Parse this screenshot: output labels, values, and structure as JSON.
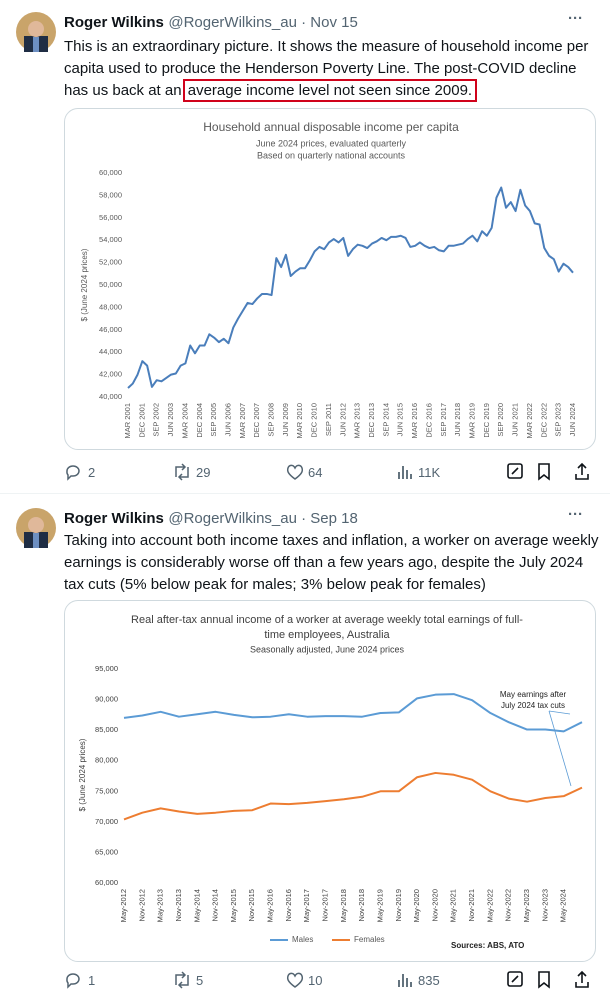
{
  "tweets": [
    {
      "name": "Roger Wilkins",
      "handle": "@RogerWilkins_au",
      "date": "Nov 15",
      "text": "This is an extraordinary picture. It shows the measure of household income per capita used to produce the Henderson Poverty Line. The post-COVID decline has us back at an ",
      "highlight": "average income level not seen since 2009.",
      "replies": "2",
      "reposts": "29",
      "likes": "64",
      "views": "11K"
    },
    {
      "name": "Roger Wilkins",
      "handle": "@RogerWilkins_au",
      "date": "Sep 18",
      "text": "Taking into account both income taxes and inflation, a worker on average weekly earnings is considerably worse off than a few years ago, despite the July 2024 tax cuts (5% below peak for males; 3% below peak for females)",
      "replies": "1",
      "reposts": "5",
      "likes": "10",
      "views": "835"
    }
  ],
  "chart_data": [
    {
      "type": "line",
      "title": "Household annual disposable income per capita",
      "subtitle": [
        "June 2024 prices, evaluated quarterly",
        "Based on quarterly national accounts"
      ],
      "y_label": "$ (June 2024 prices)",
      "color": "#4a7ebb",
      "grid": false,
      "categories": [
        "MAR 2001",
        null,
        null,
        "DEC 2001",
        null,
        null,
        "SEP 2002",
        null,
        null,
        "JUN 2003",
        null,
        null,
        "MAR 2004",
        null,
        null,
        "DEC 2004",
        null,
        null,
        "SEP 2005",
        null,
        null,
        "JUN 2006",
        null,
        null,
        "MAR 2007",
        null,
        null,
        "DEC 2007",
        null,
        null,
        "SEP 2008",
        null,
        null,
        "JUN 2009",
        null,
        null,
        "MAR 2010",
        null,
        null,
        "DEC 2010",
        null,
        null,
        "SEP 2011",
        null,
        null,
        "JUN 2012",
        null,
        null,
        "MAR 2013",
        null,
        null,
        "DEC 2013",
        null,
        null,
        "SEP 2014",
        null,
        null,
        "JUN 2015",
        null,
        null,
        "MAR 2016",
        null,
        null,
        "DEC 2016",
        null,
        null,
        "SEP 2017",
        null,
        null,
        "JUN 2018",
        null,
        null,
        "MAR 2019",
        null,
        null,
        "DEC 2019",
        null,
        null,
        "SEP 2020",
        null,
        null,
        "JUN 2021",
        null,
        null,
        "MAR 2022",
        null,
        null,
        "DEC 2022",
        null,
        null,
        "SEP 2023",
        null,
        null,
        "JUN 2024"
      ],
      "values": [
        40800,
        41200,
        42000,
        43200,
        42800,
        40900,
        41500,
        41400,
        41700,
        42000,
        42100,
        42800,
        43000,
        44600,
        43900,
        44600,
        44600,
        45600,
        45300,
        44900,
        45200,
        44800,
        46200,
        47000,
        47700,
        48400,
        48300,
        48800,
        49200,
        49200,
        49100,
        52400,
        51600,
        52700,
        50800,
        51200,
        51500,
        51500,
        52200,
        53000,
        53400,
        53200,
        53800,
        54100,
        53800,
        54200,
        52600,
        53200,
        53600,
        53500,
        53300,
        53700,
        53900,
        54200,
        54000,
        54300,
        54300,
        54400,
        54200,
        53400,
        53500,
        53800,
        53500,
        53300,
        53400,
        53100,
        53000,
        53500,
        53500,
        53600,
        53700,
        54100,
        54400,
        53900,
        54800,
        54400,
        55100,
        57800,
        58700,
        56900,
        57400,
        56600,
        58500,
        57100,
        56600,
        55500,
        55400,
        53300,
        52600,
        52300,
        51200,
        51900,
        51600,
        51100
      ],
      "ylim": [
        40000,
        60000
      ],
      "yticks": [
        {
          "value": 40000,
          "label": "40,000"
        },
        {
          "value": 42000,
          "label": "42,000"
        },
        {
          "value": 44000,
          "label": "44,000"
        },
        {
          "value": 46000,
          "label": "46,000"
        },
        {
          "value": 48000,
          "label": "48,000"
        },
        {
          "value": 50000,
          "label": "50,000"
        },
        {
          "value": 52000,
          "label": "52,000"
        },
        {
          "value": 54000,
          "label": "54,000"
        },
        {
          "value": 56000,
          "label": "56,000"
        },
        {
          "value": 58000,
          "label": "58,000"
        },
        {
          "value": 60000,
          "label": "60,000"
        }
      ]
    },
    {
      "type": "line",
      "title": [
        "Real after-tax annual income of a worker at average weekly total earnings of full-",
        "time employees, Australia"
      ],
      "subtitle": "Seasonally adjusted, June 2024 prices",
      "y_label": "$ (June 2024 prices)",
      "grid": false,
      "legend": "bottom",
      "source": "Sources: ABS, ATO",
      "annotation": [
        "May earnings after",
        "July 2024 tax cuts"
      ],
      "categories": [
        "May-2012",
        "Nov-2012",
        "May-2013",
        "Nov-2013",
        "May-2014",
        "Nov-2014",
        "May-2015",
        "Nov-2015",
        "May-2016",
        "Nov-2016",
        "May-2017",
        "Nov-2017",
        "May-2018",
        "Nov-2018",
        "May-2019",
        "Nov-2019",
        "May-2020",
        "Nov-2020",
        "May-2021",
        "Nov-2021",
        "May-2022",
        "Nov-2022",
        "May-2023",
        "Nov-2023",
        "May-2024",
        null
      ],
      "series": [
        {
          "name": "Males",
          "color": "#5b9bd5",
          "values": [
            87000,
            87400,
            88000,
            87200,
            87600,
            88000,
            87500,
            87100,
            87200,
            87600,
            87200,
            87300,
            87300,
            87200,
            87800,
            87900,
            90200,
            90800,
            90900,
            89900,
            87800,
            86300,
            85100,
            85100,
            84800,
            86300
          ]
        },
        {
          "name": "Females",
          "color": "#ed7d31",
          "values": [
            70400,
            71500,
            72200,
            71700,
            71300,
            71500,
            71800,
            71900,
            73000,
            72900,
            73100,
            73400,
            73700,
            74100,
            75000,
            75000,
            77300,
            78000,
            77700,
            76900,
            75000,
            73800,
            73300,
            73900,
            74200,
            75600
          ]
        }
      ],
      "ylim": [
        60000,
        95000
      ],
      "yticks": [
        {
          "value": 60000,
          "label": "60,000"
        },
        {
          "value": 65000,
          "label": "65,000"
        },
        {
          "value": 70000,
          "label": "70,000"
        },
        {
          "value": 75000,
          "label": "75,000"
        },
        {
          "value": 80000,
          "label": "80,000"
        },
        {
          "value": 85000,
          "label": "85,000"
        },
        {
          "value": 90000,
          "label": "90,000"
        },
        {
          "value": 95000,
          "label": "95,000"
        }
      ]
    }
  ]
}
